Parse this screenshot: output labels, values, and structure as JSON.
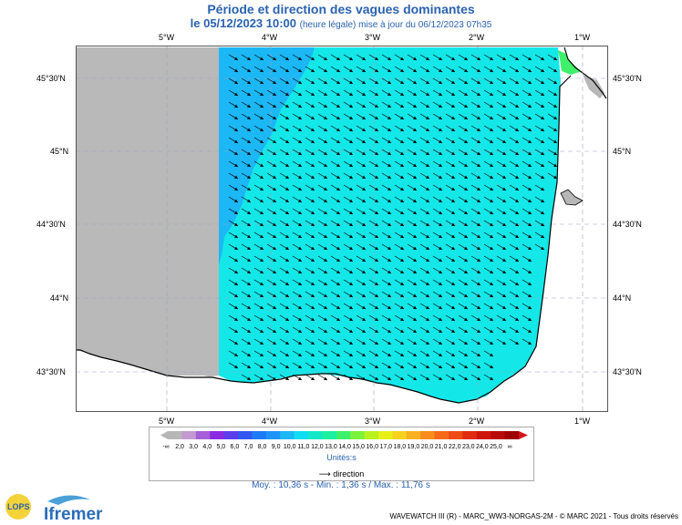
{
  "header": {
    "title": "Période et direction des vagues dominantes",
    "date": "le 05/12/2023 10:00",
    "note": "(heure légale) mise à jour du 06/12/2023 07h35"
  },
  "axes": {
    "top_lon": [
      "5°W",
      "4°W",
      "3°W",
      "2°W",
      "1°W"
    ],
    "bottom_lon": [
      "5°W",
      "4°W",
      "3°W",
      "2°W",
      "1°W"
    ],
    "left_lat": [
      "45°30'N",
      "45°N",
      "44°30'N",
      "44°N",
      "43°30'N"
    ],
    "right_lat": [
      "45°30'N",
      "45°N",
      "44°30'N",
      "44°N",
      "43°30'N"
    ]
  },
  "colorbar": {
    "labels": [
      "-∞",
      "2,0",
      "3,0",
      "4,0",
      "5,0",
      "6,0",
      "7,0",
      "8,0",
      "9,0",
      "10,0",
      "11,0",
      "12,0",
      "13,0",
      "14,0",
      "15,0",
      "16,0",
      "17,0",
      "18,0",
      "19,0",
      "20,0",
      "21,0",
      "22,0",
      "23,0",
      "24,0",
      "25,0",
      "∞"
    ],
    "colors": [
      "#b7b7b7",
      "#c29ad1",
      "#a55fd8",
      "#8a2be2",
      "#5b3dea",
      "#3358f0",
      "#1f7af5",
      "#1e95f6",
      "#1cb7f5",
      "#11dcf1",
      "#14e7c8",
      "#1df09e",
      "#3ff06a",
      "#7cf23b",
      "#b7f21e",
      "#e6f015",
      "#f7d21c",
      "#f8b01f",
      "#f88c1d",
      "#f56a18",
      "#ee4a15",
      "#e02b10",
      "#cf150b",
      "#b90a0a",
      "#9e0303"
    ],
    "units": "Unités:s"
  },
  "legend": {
    "direction_label": "direction"
  },
  "stats": "Moy. : 10,36 s   -   Min. : 1,36 s / Max. : 11,76 s",
  "footer": "WAVEWATCH III (R) - MARC_WW3-NORGAS-2M - © MARC 2021 - Tous droits réservés",
  "logo": {
    "lops": "LOPS",
    "ifremer": "Ifremer"
  }
}
